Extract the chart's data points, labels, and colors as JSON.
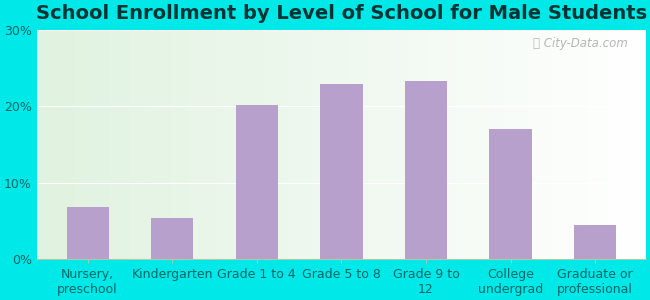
{
  "title": "School Enrollment by Level of School for Male Students",
  "categories": [
    "Nursery,\npreschool",
    "Kindergarten",
    "Grade 1 to 4",
    "Grade 5 to 8",
    "Grade 9 to\n12",
    "College\nundergrad",
    "Graduate or\nprofessional"
  ],
  "values": [
    6.8,
    5.3,
    20.2,
    23.0,
    23.4,
    17.1,
    4.5
  ],
  "bar_color": "#b8a0cc",
  "ylim": [
    0,
    30
  ],
  "yticks": [
    0,
    10,
    20,
    30
  ],
  "ytick_labels": [
    "0%",
    "10%",
    "20%",
    "30%"
  ],
  "title_fontsize": 14,
  "tick_fontsize": 9,
  "bg_outer": "#00e8e8",
  "title_color": "#003333",
  "tick_color": "#006666",
  "watermark": "City-Data.com",
  "bar_width": 0.5
}
